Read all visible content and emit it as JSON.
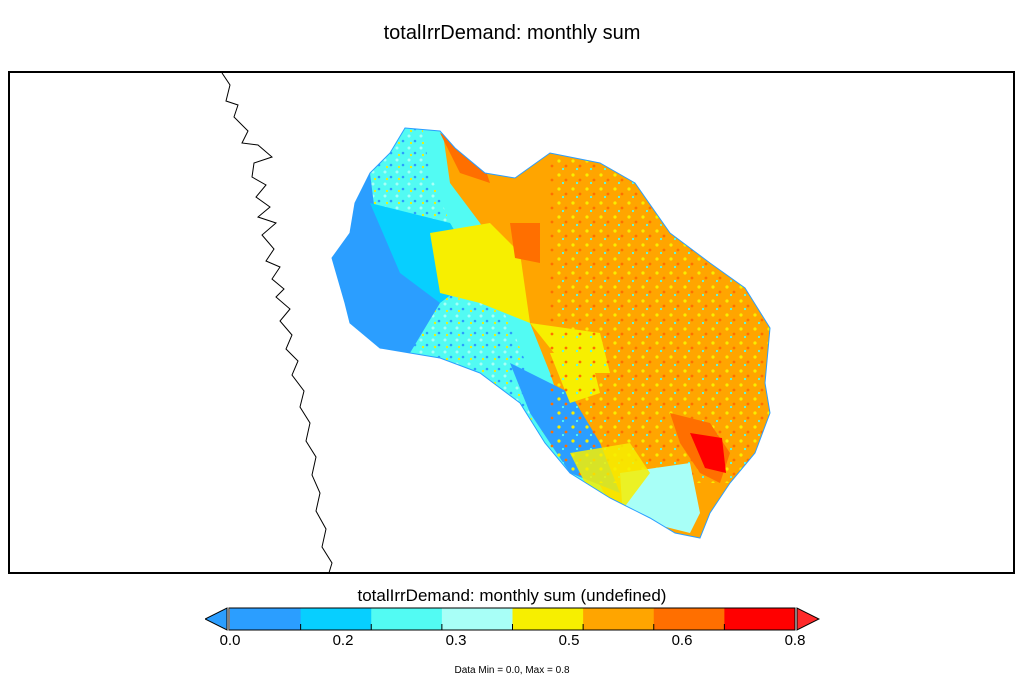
{
  "title": "totalIrrDemand: monthly sum",
  "colorbar": {
    "title": "totalIrrDemand: monthly sum (undefined)",
    "ticks": [
      "0.0",
      "0.2",
      "0.3",
      "0.5",
      "0.6",
      "0.8"
    ],
    "colors": [
      "#2b9eff",
      "#07cfff",
      "#52fbf3",
      "#a8fff7",
      "#f7ef00",
      "#ffa500",
      "#ff6f00",
      "#ff0000"
    ],
    "under_color": "#2b9eff",
    "over_color": "#ff2a2a"
  },
  "stats": "Data Min = 0.0, Max = 0.8"
}
